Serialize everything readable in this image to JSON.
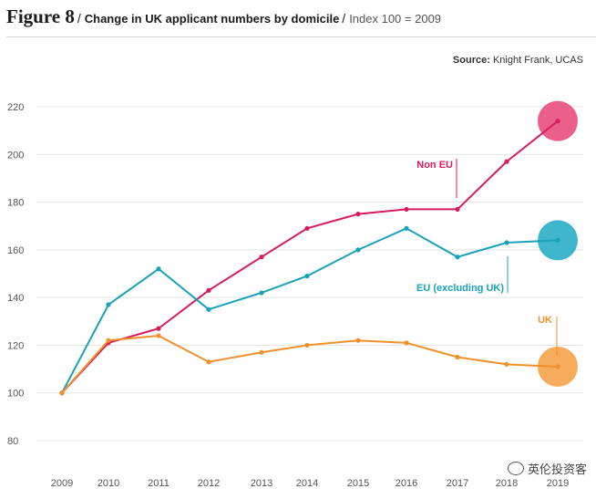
{
  "figure": {
    "number": "Figure 8",
    "title": "Change in UK applicant numbers by domicile",
    "subtitle": "Index 100 = 2009",
    "source_label": "Source:",
    "source_text": "Knight Frank, UCAS"
  },
  "watermark": {
    "text": "英伦投资客",
    "icon": "wechat-icon"
  },
  "chart_data": {
    "type": "line",
    "title": "Change in UK applicant numbers by domicile",
    "subtitle": "Index 100 = 2009",
    "xlabel": "",
    "ylabel": "",
    "ylim": [
      80,
      220
    ],
    "yticks": [
      80,
      100,
      120,
      140,
      160,
      180,
      200,
      220
    ],
    "grid": true,
    "legend": "inline labels",
    "categories": [
      "2009",
      "2010",
      "2011",
      "2012",
      "2013",
      "2014",
      "2015",
      "2016",
      "2017",
      "2018",
      "2019"
    ],
    "series": [
      {
        "name": "Non EU",
        "color": "#d81b60",
        "bubble": "#e94f7e",
        "values": [
          100,
          121,
          127,
          143,
          157,
          169,
          175,
          177,
          177,
          197,
          214
        ]
      },
      {
        "name": "EU (excluding UK)",
        "color": "#17a2b8",
        "bubble": "#2aaec6",
        "values": [
          100,
          137,
          152,
          135,
          142,
          149,
          160,
          169,
          157,
          163,
          164
        ]
      },
      {
        "name": "UK",
        "color": "#f0902a",
        "bubble": "#f5a24b",
        "values": [
          100,
          122,
          124,
          113,
          117,
          120,
          122,
          121,
          115,
          112,
          111
        ]
      }
    ]
  }
}
